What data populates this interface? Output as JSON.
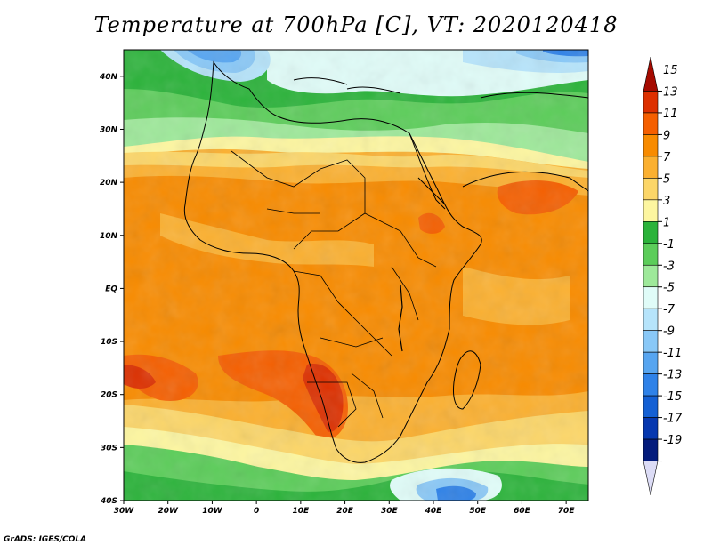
{
  "title": "Temperature at 700hPa [C], VT: 2020120418",
  "credit": "GrADS: IGES/COLA",
  "map": {
    "projection": "lat-lon",
    "lon_range": [
      -30,
      75
    ],
    "lat_range": [
      -40,
      45
    ],
    "lat_ticks": [
      {
        "value": 40,
        "label": "40N"
      },
      {
        "value": 30,
        "label": "30N"
      },
      {
        "value": 20,
        "label": "20N"
      },
      {
        "value": 10,
        "label": "10N"
      },
      {
        "value": 0,
        "label": "EQ"
      },
      {
        "value": -10,
        "label": "10S"
      },
      {
        "value": -20,
        "label": "20S"
      },
      {
        "value": -30,
        "label": "30S"
      },
      {
        "value": -40,
        "label": "40S"
      }
    ],
    "lon_ticks": [
      {
        "value": -30,
        "label": "30W"
      },
      {
        "value": -20,
        "label": "20W"
      },
      {
        "value": -10,
        "label": "10W"
      },
      {
        "value": 0,
        "label": "0"
      },
      {
        "value": 10,
        "label": "10E"
      },
      {
        "value": 20,
        "label": "20E"
      },
      {
        "value": 30,
        "label": "30E"
      },
      {
        "value": 40,
        "label": "40E"
      },
      {
        "value": 50,
        "label": "50E"
      },
      {
        "value": 60,
        "label": "60E"
      },
      {
        "value": 70,
        "label": "70E"
      }
    ]
  },
  "colorbar": {
    "levels": [
      "15",
      "13",
      "11",
      "9",
      "7",
      "5",
      "3",
      "1",
      "-1",
      "-3",
      "-5",
      "-7",
      "-9",
      "-11",
      "-13",
      "-15",
      "-17",
      "-19"
    ],
    "colors": [
      "#a50a00",
      "#dd3000",
      "#f55f00",
      "#f88b00",
      "#fbb030",
      "#fcd668",
      "#fdf6a0",
      "#2bb33a",
      "#5ccd5a",
      "#9ee99a",
      "#e0fcf8",
      "#b6e4fb",
      "#89c8f7",
      "#57a5f0",
      "#2f82e8",
      "#1460d4",
      "#0638b0",
      "#041c7c",
      "#dcdcf6"
    ],
    "top_triangle_color": "#a50a00",
    "bottom_triangle_color": "#dcdcf6"
  }
}
